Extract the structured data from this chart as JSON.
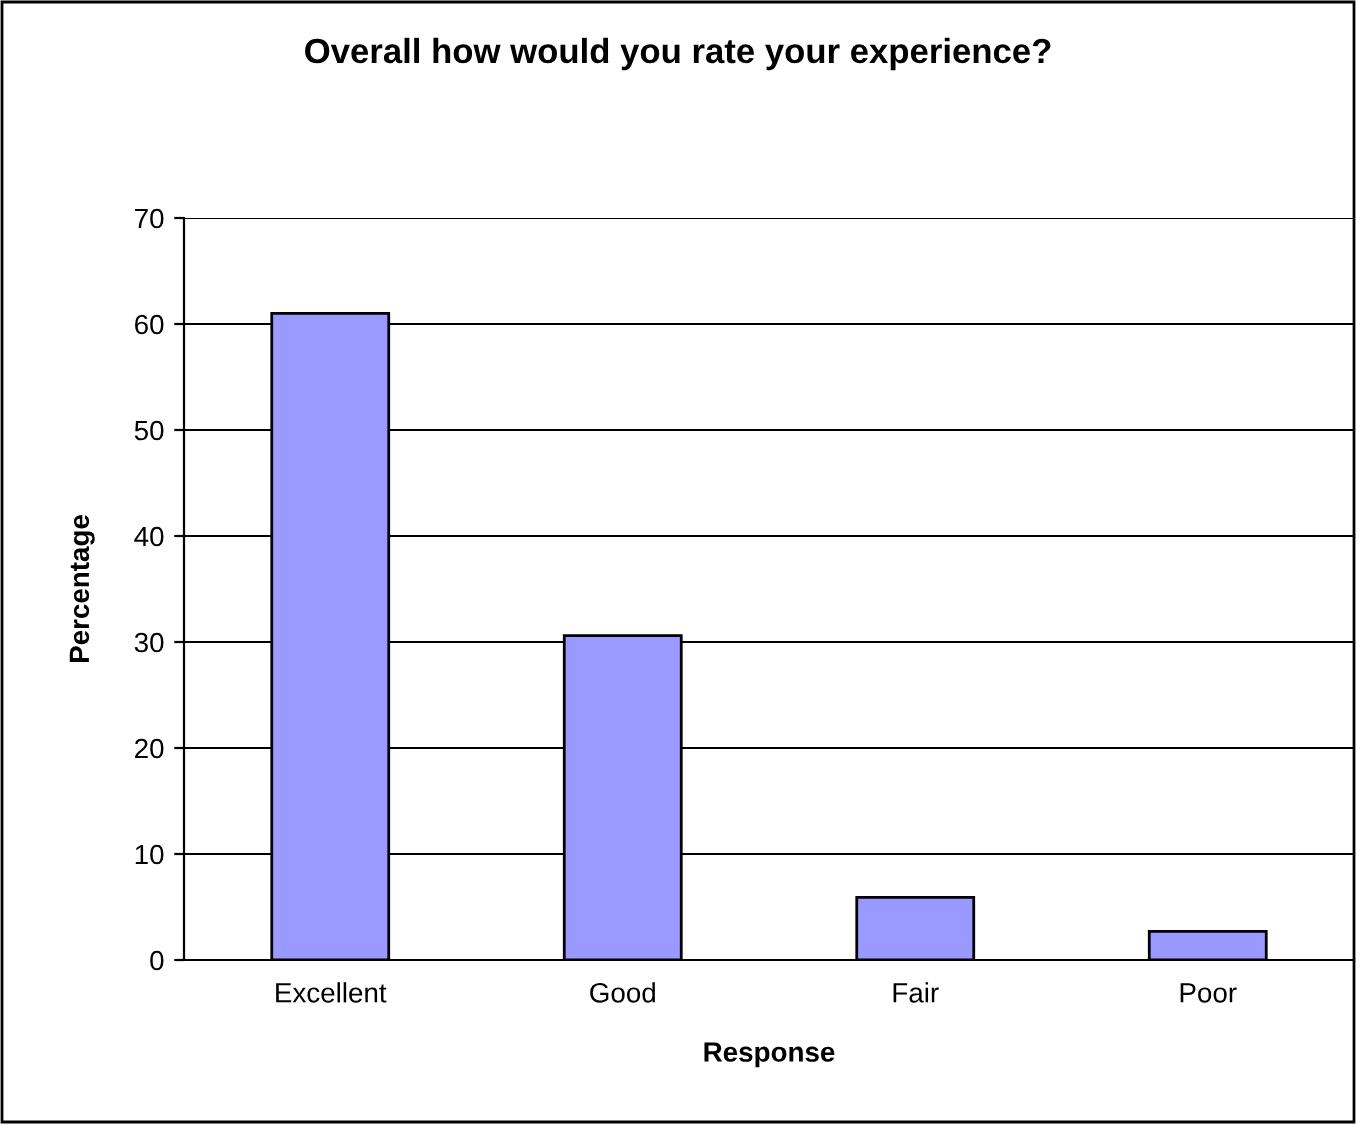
{
  "chart_data": {
    "type": "bar",
    "title": "Overall how would you rate your experience?",
    "xlabel": "Response",
    "ylabel": "Percentage",
    "categories": [
      "Excellent",
      "Good",
      "Fair",
      "Poor"
    ],
    "series": [
      {
        "color": "#9999ff",
        "values": [
          61,
          30.6,
          5.9,
          2.7
        ]
      }
    ],
    "ylim": [
      0,
      70
    ],
    "yticks": [
      0,
      10,
      20,
      30,
      40,
      50,
      60,
      70
    ],
    "grid": "y"
  }
}
